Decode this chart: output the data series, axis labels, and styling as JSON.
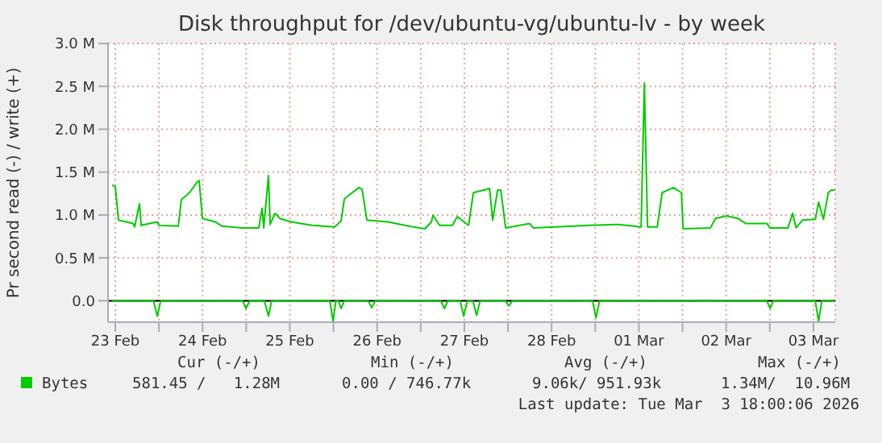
{
  "chart_data": {
    "type": "line",
    "title": "Disk throughput for /dev/ubuntu-vg/ubuntu-lv - by week",
    "ylabel": "Pr second read (-) / write (+)",
    "xlim": [
      "2026-02-23T10:00",
      "2026-03-03T18:00"
    ],
    "xticks": [
      {
        "value": "2026-02-23T12:00",
        "label": "23 Feb"
      },
      {
        "value": "2026-02-24T00:00",
        "label": null
      },
      {
        "value": "2026-02-24T12:00",
        "label": "24 Feb"
      },
      {
        "value": "2026-02-25T00:00",
        "label": null
      },
      {
        "value": "2026-02-25T12:00",
        "label": "25 Feb"
      },
      {
        "value": "2026-02-26T00:00",
        "label": null
      },
      {
        "value": "2026-02-26T12:00",
        "label": "26 Feb"
      },
      {
        "value": "2026-02-27T00:00",
        "label": null
      },
      {
        "value": "2026-02-27T12:00",
        "label": "27 Feb"
      },
      {
        "value": "2026-02-28T00:00",
        "label": null
      },
      {
        "value": "2026-02-28T12:00",
        "label": "28 Feb"
      },
      {
        "value": "2026-03-01T00:00",
        "label": null
      },
      {
        "value": "2026-03-01T12:00",
        "label": "01 Mar"
      },
      {
        "value": "2026-03-02T00:00",
        "label": null
      },
      {
        "value": "2026-03-02T12:00",
        "label": "02 Mar"
      },
      {
        "value": "2026-03-03T00:00",
        "label": null
      },
      {
        "value": "2026-03-03T12:00",
        "label": "03 Mar"
      }
    ],
    "ylim": [
      -0.25,
      3.0
    ],
    "yticks": [
      {
        "value": 0,
        "label": "0.0"
      },
      {
        "value": 0.5,
        "label": "0.5 M"
      },
      {
        "value": 1,
        "label": "1.0 M"
      },
      {
        "value": 1.5,
        "label": "1.5 M"
      },
      {
        "value": 2,
        "label": "2.0 M"
      },
      {
        "value": 2.5,
        "label": "2.5 M"
      },
      {
        "value": 3,
        "label": "3.0 M"
      }
    ],
    "grid": true,
    "legend": "bottom",
    "ref_lines": [
      {
        "axis": "y",
        "value": 0,
        "color": "#000000"
      }
    ],
    "series": [
      {
        "name": "Bytes",
        "color": "#00cc00",
        "x": [
          "2026-02-23T11:07",
          "2026-02-23T12:00",
          "2026-02-23T12:53",
          "2026-02-23T16:53",
          "2026-02-23T17:19",
          "2026-02-23T18:39",
          "2026-02-23T19:06",
          "2026-02-23T23:32",
          "2026-02-24T00:00",
          "2026-02-24T05:18",
          "2026-02-24T06:11",
          "2026-02-24T08:24",
          "2026-02-24T10:37",
          "2026-02-24T11:04",
          "2026-02-24T11:57",
          "2026-02-24T15:30",
          "2026-02-24T17:17",
          "2026-02-24T23:02",
          "2026-02-25T03:28",
          "2026-02-25T04:22",
          "2026-02-25T04:49",
          "2026-02-25T06:08",
          "2026-02-25T06:35",
          "2026-02-25T07:55",
          "2026-02-25T09:15",
          "2026-02-25T12:21",
          "2026-02-25T18:07",
          "2026-02-26T00:20",
          "2026-02-26T02:06",
          "2026-02-26T03:00",
          "2026-02-26T06:59",
          "2026-02-26T07:52",
          "2026-02-26T09:12",
          "2026-02-26T14:58",
          "2026-02-26T20:44",
          "2026-02-27T01:10",
          "2026-02-27T02:57",
          "2026-02-27T03:23",
          "2026-02-27T05:10",
          "2026-02-27T08:43",
          "2026-02-27T10:03",
          "2026-02-27T13:09",
          "2026-02-27T14:29",
          "2026-02-27T18:55",
          "2026-02-27T19:48",
          "2026-02-27T21:08",
          "2026-02-27T22:01",
          "2026-02-27T23:21",
          "2026-02-28T06:01",
          "2026-02-28T06:54",
          "2026-02-28T22:25",
          "2026-03-01T06:24",
          "2026-03-01T12:37",
          "2026-03-01T13:30",
          "2026-03-01T14:23",
          "2026-03-01T17:03",
          "2026-03-01T18:23",
          "2026-03-01T21:29",
          "2026-03-01T23:42",
          "2026-03-02T00:09",
          "2026-03-02T07:42",
          "2026-03-02T09:02",
          "2026-03-02T12:08",
          "2026-03-02T15:14",
          "2026-03-02T17:27",
          "2026-03-02T21:00",
          "2026-03-02T23:13",
          "2026-03-03T00:06",
          "2026-03-03T04:59",
          "2026-03-03T06:19",
          "2026-03-03T07:12",
          "2026-03-03T08:59",
          "2026-03-03T12:32",
          "2026-03-03T13:25",
          "2026-03-03T14:45",
          "2026-03-03T16:05",
          "2026-03-03T16:58",
          "2026-03-03T17:51"
        ],
        "values": [
          1.35,
          1.33,
          0.94,
          0.9,
          0.86,
          1.13,
          0.88,
          0.92,
          0.88,
          0.87,
          1.18,
          1.26,
          1.39,
          1.4,
          0.96,
          0.92,
          0.87,
          0.85,
          0.85,
          1.08,
          0.85,
          1.46,
          0.89,
          1.02,
          0.96,
          0.92,
          0.88,
          0.86,
          0.93,
          1.19,
          1.32,
          1.3,
          0.94,
          0.92,
          0.87,
          0.84,
          0.92,
          1.0,
          0.88,
          0.88,
          0.98,
          0.88,
          1.26,
          1.31,
          0.94,
          1.29,
          1.29,
          0.85,
          0.9,
          0.85,
          0.88,
          0.89,
          0.86,
          2.54,
          0.86,
          0.86,
          1.26,
          1.32,
          1.26,
          0.84,
          0.85,
          0.96,
          0.99,
          0.96,
          0.9,
          0.9,
          0.9,
          0.85,
          0.85,
          1.02,
          0.85,
          0.94,
          0.95,
          1.15,
          0.95,
          1.26,
          1.29,
          1.29
        ]
      },
      {
        "color": "#00cc00",
        "x": [
          "2026-02-23T11:07",
          "2026-02-23T22:30",
          "2026-02-23T23:32",
          "2026-02-24T00:30",
          "2026-02-24T23:00",
          "2026-02-24T23:56",
          "2026-02-25T01:00",
          "2026-02-25T05:00",
          "2026-02-25T06:08",
          "2026-02-25T07:00",
          "2026-02-25T23:00",
          "2026-02-25T23:53",
          "2026-02-26T00:40",
          "2026-02-26T01:20",
          "2026-02-26T02:06",
          "2026-02-26T03:00",
          "2026-02-26T09:30",
          "2026-02-26T10:32",
          "2026-02-26T11:30",
          "2026-02-27T05:30",
          "2026-02-27T06:30",
          "2026-02-27T07:30",
          "2026-02-27T10:50",
          "2026-02-27T11:48",
          "2026-02-27T12:50",
          "2026-02-27T14:20",
          "2026-02-27T15:22",
          "2026-02-27T16:20",
          "2026-02-27T23:15",
          "2026-02-28T00:14",
          "2026-02-28T01:15",
          "2026-02-28T23:15",
          "2026-03-01T00:12",
          "2026-03-01T01:10",
          "2026-03-02T23:10",
          "2026-03-03T00:06",
          "2026-03-03T01:00",
          "2026-03-03T12:30",
          "2026-03-03T13:25",
          "2026-03-03T14:20",
          "2026-03-03T17:51"
        ],
        "values": [
          0,
          0,
          -0.18,
          0,
          0,
          -0.09,
          0,
          0,
          -0.18,
          0,
          0,
          -0.24,
          0,
          0,
          -0.09,
          0,
          0,
          -0.08,
          0,
          0,
          -0.09,
          0,
          0,
          -0.18,
          0,
          0,
          -0.17,
          0,
          0,
          -0.06,
          0,
          0,
          -0.2,
          0,
          0,
          -0.09,
          0,
          0,
          -0.24,
          0,
          0
        ]
      }
    ],
    "annotations": [
      "Cur (-/+)",
      "Min (-/+)",
      "Avg (-/+)",
      "Max (-/+)",
      "581.45 /   1.28M",
      "0.00 / 746.77k",
      "9.06k/ 951.93k",
      "1.34M/  10.96M",
      "Last update: Tue Mar  3 18:00:06 2026"
    ]
  }
}
